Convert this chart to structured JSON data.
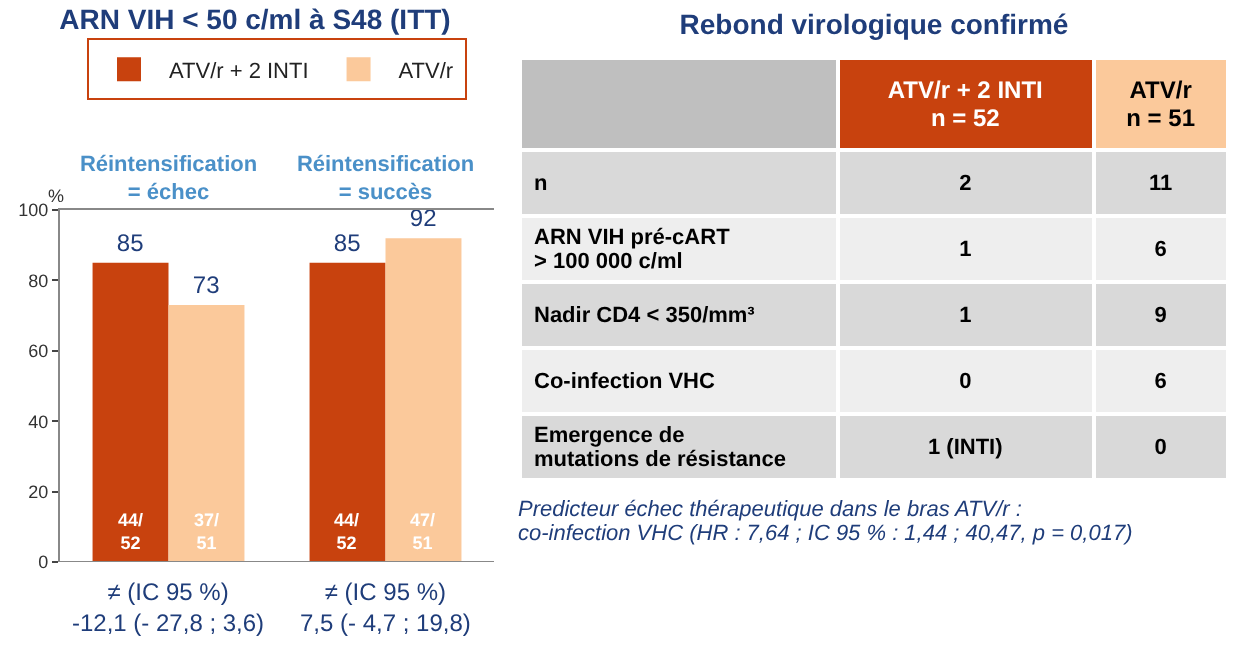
{
  "chart_data": [
    {
      "type": "bar",
      "title": "ARN VIH < 50 c/ml à S48 (ITT)",
      "ylabel": "%",
      "categories": [
        "Réintensification\n= échec",
        "Réintensification\n= succès"
      ],
      "series": [
        {
          "name": "ATV/r + 2 INTI",
          "color": "#c8420e",
          "values": [
            85,
            85
          ]
        },
        {
          "name": "ATV/r",
          "color": "#fbc99b",
          "values": [
            73,
            92
          ]
        }
      ],
      "data_labels": true,
      "ylim": [
        0,
        100
      ],
      "yticks": [
        0,
        20,
        40,
        60,
        80,
        100
      ],
      "grid": false,
      "legend": "top",
      "annotations": [
        {
          "text": "44/\n52",
          "x": "Réintensification\n= échec"
        },
        {
          "text": "37/\n51",
          "x": "Réintensification\n= échec"
        },
        {
          "text": "44/\n52",
          "x": "Réintensification\n= succès"
        },
        {
          "text": "47/\n51",
          "x": "Réintensification\n= succès"
        },
        "≠ (IC 95 %)\n-12,1 (- 27,8 ; 3,6)",
        "≠ (IC 95 %)\n7,5 (- 4,7 ; 19,8)"
      ]
    },
    {
      "type": "other",
      "title": "Rebond virologique confirmé",
      "categories": [
        "ATV/r + 2 INTI\nn = 52",
        "ATV/r\nn = 51"
      ],
      "y_categories": [
        "n",
        "ARN VIH pré-cART\n> 100 000 c/ml",
        "Nadir CD4 < 350/mm³",
        "Co-infection VHC",
        "Emergence de\nmutations de résistance"
      ],
      "cell_labels": [
        [
          "2",
          "11"
        ],
        [
          "1",
          "6"
        ],
        [
          "1",
          "9"
        ],
        [
          "0",
          "6"
        ],
        [
          "1 (INTI)",
          "0"
        ]
      ],
      "colors": [
        "#c8420e",
        "#fbc99b"
      ],
      "annotations": [
        "Predicteur échec thérapeutique dans le bras ATV/r :\nco-infection VHC (HR : 7,64 ; IC 95 % : 1,44 ; 40,47, p = 0,017)"
      ]
    }
  ]
}
